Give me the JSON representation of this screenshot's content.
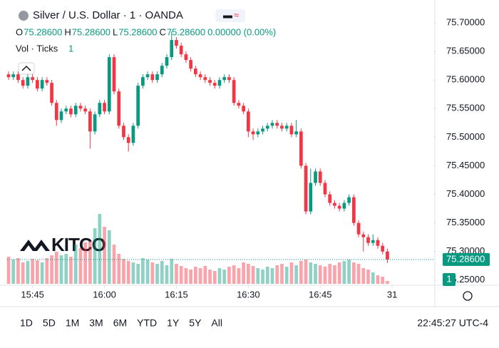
{
  "chart_data": {
    "type": "candlestick",
    "title": "Silver / U.S. Dollar · 1 · OANDA",
    "ohlc_legend": {
      "o_label": "O",
      "o": "75.28600",
      "h_label": "H",
      "h": "75.28600",
      "l_label": "L",
      "l": "75.28600",
      "c_label": "C",
      "c": "75.28600",
      "change": "0.00000 (0.00%)"
    },
    "volume_legend": {
      "label": "Vol · Ticks",
      "value": "1"
    },
    "watermark": "KITCO",
    "open": [
      75.61,
      75.605,
      75.61,
      75.6,
      75.59,
      75.605,
      75.6,
      75.585,
      75.6,
      75.595,
      75.56,
      75.53,
      75.545,
      75.55,
      75.54,
      75.555,
      75.55,
      75.545,
      75.51,
      75.54,
      75.56,
      75.545,
      75.64,
      75.58,
      75.52,
      75.5,
      75.49,
      75.52,
      75.59,
      75.605,
      75.61,
      75.6,
      75.61,
      75.625,
      75.64,
      75.67,
      75.66,
      75.645,
      75.635,
      75.62,
      75.61,
      75.605,
      75.6,
      75.595,
      75.59,
      75.6,
      75.605,
      75.6,
      75.56,
      75.555,
      75.545,
      75.51,
      75.505,
      75.51,
      75.515,
      75.52,
      75.525,
      75.52,
      75.515,
      75.52,
      75.505,
      75.51,
      75.45,
      75.37,
      75.42,
      75.44,
      75.42,
      75.4,
      75.385,
      75.38,
      75.375,
      75.385,
      75.395,
      75.35,
      75.33,
      75.325,
      75.315,
      75.32,
      75.31,
      75.3
    ],
    "high": [
      75.615,
      75.615,
      75.615,
      75.605,
      75.61,
      75.61,
      75.605,
      75.605,
      75.605,
      75.6,
      75.565,
      75.55,
      75.555,
      75.555,
      75.56,
      75.56,
      75.555,
      75.55,
      75.545,
      75.565,
      75.565,
      75.645,
      75.645,
      75.585,
      75.525,
      75.505,
      75.525,
      75.595,
      75.61,
      75.615,
      75.615,
      75.615,
      75.63,
      75.645,
      75.685,
      75.675,
      75.665,
      75.65,
      75.64,
      75.625,
      75.615,
      75.61,
      75.605,
      75.6,
      75.605,
      75.61,
      75.61,
      75.605,
      75.565,
      75.56,
      75.55,
      75.515,
      75.515,
      75.52,
      75.525,
      75.53,
      75.53,
      75.525,
      75.525,
      75.525,
      75.53,
      75.515,
      75.455,
      75.445,
      75.445,
      75.445,
      75.425,
      75.405,
      75.39,
      75.385,
      75.39,
      75.4,
      75.4,
      75.355,
      75.335,
      75.33,
      75.33,
      75.325,
      75.315,
      75.305
    ],
    "low": [
      75.6,
      75.6,
      75.595,
      75.585,
      75.585,
      75.595,
      75.58,
      75.58,
      75.59,
      75.555,
      75.52,
      75.525,
      75.54,
      75.535,
      75.535,
      75.545,
      75.54,
      75.48,
      75.505,
      75.535,
      75.54,
      75.54,
      75.575,
      75.515,
      75.495,
      75.475,
      75.485,
      75.515,
      75.585,
      75.6,
      75.595,
      75.595,
      75.605,
      75.62,
      75.635,
      75.655,
      75.64,
      75.63,
      75.615,
      75.605,
      75.6,
      75.595,
      75.59,
      75.585,
      75.585,
      75.595,
      75.595,
      75.555,
      75.55,
      75.54,
      75.5,
      75.495,
      75.5,
      75.505,
      75.51,
      75.515,
      75.515,
      75.51,
      75.51,
      75.5,
      75.5,
      75.445,
      75.365,
      75.365,
      75.415,
      75.415,
      75.395,
      75.38,
      75.375,
      75.37,
      75.37,
      75.38,
      75.345,
      75.325,
      75.3,
      75.31,
      75.31,
      75.305,
      75.295,
      75.28
    ],
    "close": [
      75.605,
      75.61,
      75.6,
      75.59,
      75.605,
      75.6,
      75.585,
      75.6,
      75.595,
      75.56,
      75.53,
      75.545,
      75.55,
      75.54,
      75.555,
      75.55,
      75.545,
      75.51,
      75.54,
      75.56,
      75.545,
      75.64,
      75.58,
      75.52,
      75.5,
      75.49,
      75.52,
      75.59,
      75.605,
      75.61,
      75.6,
      75.61,
      75.625,
      75.64,
      75.67,
      75.66,
      75.645,
      75.635,
      75.62,
      75.61,
      75.605,
      75.6,
      75.595,
      75.59,
      75.6,
      75.605,
      75.6,
      75.56,
      75.555,
      75.545,
      75.51,
      75.505,
      75.51,
      75.515,
      75.52,
      75.525,
      75.52,
      75.515,
      75.52,
      75.505,
      75.51,
      75.45,
      75.37,
      75.42,
      75.44,
      75.42,
      75.4,
      75.385,
      75.38,
      75.375,
      75.385,
      75.395,
      75.35,
      75.33,
      75.325,
      75.315,
      75.32,
      75.31,
      75.3,
      75.286
    ],
    "volume": [
      38,
      34,
      36,
      30,
      32,
      35,
      33,
      30,
      36,
      40,
      45,
      40,
      42,
      38,
      55,
      50,
      58,
      60,
      78,
      98,
      80,
      75,
      55,
      42,
      35,
      32,
      30,
      28,
      36,
      34,
      30,
      28,
      32,
      26,
      35,
      28,
      25,
      22,
      20,
      24,
      22,
      25,
      20,
      18,
      22,
      20,
      24,
      26,
      22,
      30,
      28,
      25,
      22,
      20,
      24,
      22,
      26,
      28,
      24,
      30,
      26,
      32,
      34,
      30,
      28,
      26,
      24,
      28,
      26,
      30,
      32,
      34,
      30,
      28,
      22,
      20,
      16,
      12,
      10,
      4
    ],
    "volume_lim": [
      0,
      100
    ],
    "up_color": "#089981",
    "down_color": "#f23645",
    "xlim": [
      -0.3,
      88.6
    ],
    "xticks": [
      {
        "value": 5,
        "label": "15:45"
      },
      {
        "value": 20,
        "label": "16:00"
      },
      {
        "value": 35,
        "label": "16:15"
      },
      {
        "value": 50,
        "label": "16:30"
      },
      {
        "value": 65,
        "label": "16:45"
      },
      {
        "value": 80,
        "label": "31"
      }
    ],
    "ylim": [
      75.241,
      75.725
    ],
    "yticks": [
      {
        "value": 75.25,
        "label": "75.25000"
      },
      {
        "value": 75.3,
        "label": "75.30000"
      },
      {
        "value": 75.35,
        "label": "75.35000"
      },
      {
        "value": 75.4,
        "label": "75.40000"
      },
      {
        "value": 75.45,
        "label": "75.45000"
      },
      {
        "value": 75.5,
        "label": "75.50000"
      },
      {
        "value": 75.55,
        "label": "75.55000"
      },
      {
        "value": 75.6,
        "label": "75.60000"
      },
      {
        "value": 75.65,
        "label": "75.65000"
      },
      {
        "value": 75.7,
        "label": "75.70000"
      }
    ],
    "last_price": {
      "value": 75.286,
      "label": "75.28600"
    },
    "last_volume_label": "1",
    "ranges": [
      "1D",
      "5D",
      "1M",
      "3M",
      "6M",
      "YTD",
      "1Y",
      "5Y",
      "All"
    ],
    "clock": "22:45:27 UTC-4",
    "grid": false
  }
}
